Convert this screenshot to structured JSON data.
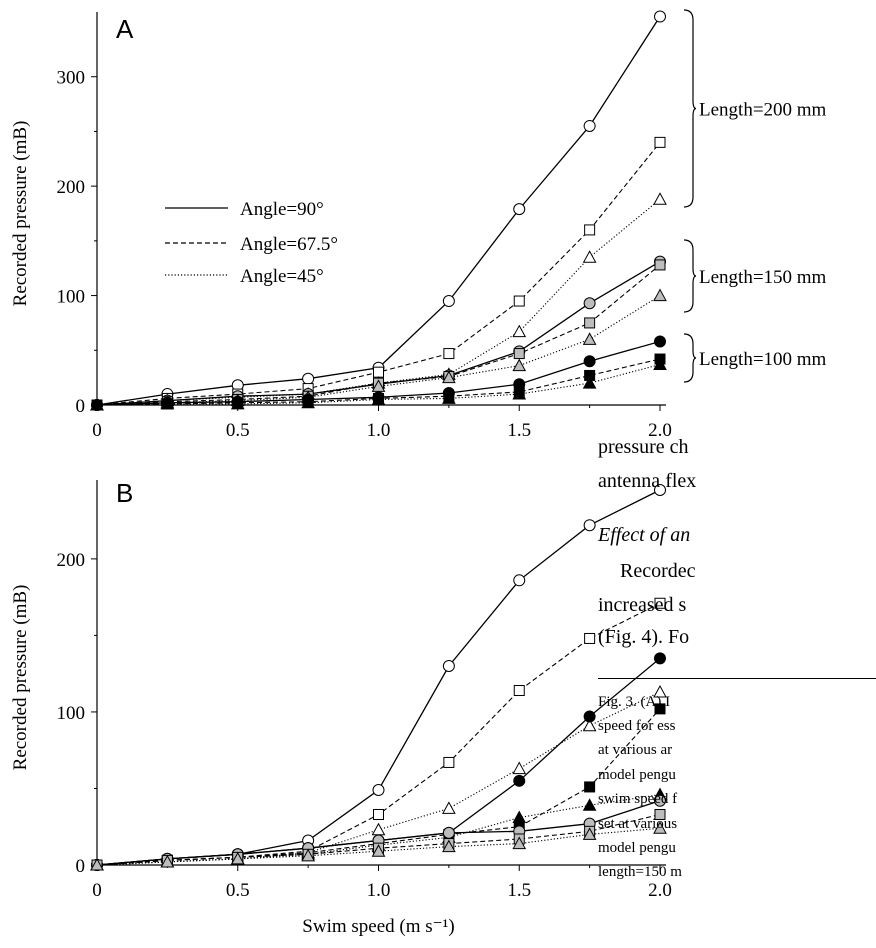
{
  "chart_data": [
    {
      "panel": "A",
      "type": "line",
      "ylabel": "Recorded pressure (mB)",
      "xlim": [
        0,
        2.0
      ],
      "ylim": [
        0,
        350
      ],
      "xticks": [
        "0",
        "0.5",
        "1.0",
        "1.5",
        "2.0"
      ],
      "yticks": [
        "0",
        "100",
        "200",
        "300"
      ],
      "legend": {
        "position": "upper-left",
        "entries": [
          "Angle=90°",
          "Angle=67.5°",
          "Angle=45°"
        ]
      },
      "group_labels": [
        "Length=200 mm",
        "Length=150 mm",
        "Length=100 mm"
      ],
      "x": [
        0,
        0.25,
        0.5,
        0.75,
        1.0,
        1.25,
        1.5,
        1.75,
        2.0
      ],
      "series": [
        {
          "length": 200,
          "angle": 90,
          "line": "solid",
          "marker": "circle",
          "fill": "white",
          "values": [
            0,
            10,
            18,
            24,
            34,
            95,
            179,
            255,
            355
          ]
        },
        {
          "length": 200,
          "angle": 67.5,
          "line": "dashed",
          "marker": "square",
          "fill": "white",
          "values": [
            0,
            6,
            10,
            15,
            30,
            47,
            95,
            160,
            240
          ]
        },
        {
          "length": 200,
          "angle": 45,
          "line": "dotted",
          "marker": "triangle",
          "fill": "white",
          "values": [
            0,
            4,
            7,
            10,
            20,
            28,
            67,
            135,
            188
          ]
        },
        {
          "length": 150,
          "angle": 90,
          "line": "solid",
          "marker": "circle",
          "fill": "gray",
          "values": [
            0,
            4,
            8,
            10,
            19,
            27,
            49,
            93,
            131
          ]
        },
        {
          "length": 150,
          "angle": 67.5,
          "line": "dashed",
          "marker": "square",
          "fill": "gray",
          "values": [
            0,
            3,
            5,
            8,
            20,
            26,
            47,
            75,
            128
          ]
        },
        {
          "length": 150,
          "angle": 45,
          "line": "dotted",
          "marker": "triangle",
          "fill": "gray",
          "values": [
            0,
            2,
            4,
            7,
            17,
            25,
            36,
            60,
            100
          ]
        },
        {
          "length": 100,
          "angle": 90,
          "line": "solid",
          "marker": "circle",
          "fill": "black",
          "values": [
            0,
            2,
            3,
            5,
            7,
            11,
            19,
            40,
            58
          ]
        },
        {
          "length": 100,
          "angle": 67.5,
          "line": "dashed",
          "marker": "square",
          "fill": "black",
          "values": [
            0,
            1,
            2,
            3,
            6,
            8,
            12,
            27,
            42
          ]
        },
        {
          "length": 100,
          "angle": 45,
          "line": "dotted",
          "marker": "triangle",
          "fill": "black",
          "values": [
            0,
            1,
            1,
            2,
            5,
            6,
            10,
            20,
            37
          ]
        }
      ]
    },
    {
      "panel": "B",
      "type": "line",
      "xlabel": "Swim speed (m s⁻¹)",
      "ylabel": "Recorded pressure (mB)",
      "xlim": [
        0,
        2.0
      ],
      "ylim": [
        0,
        245
      ],
      "xticks": [
        "0",
        "0.5",
        "1.0",
        "1.5",
        "2.0"
      ],
      "yticks": [
        "0",
        "100",
        "200"
      ],
      "x": [
        0,
        0.25,
        0.5,
        0.75,
        1.0,
        1.25,
        1.5,
        1.75,
        2.0
      ],
      "series": [
        {
          "length": 200,
          "angle": 90,
          "line": "solid",
          "marker": "circle",
          "fill": "white",
          "values": [
            0,
            4,
            7,
            16,
            49,
            130,
            186,
            222,
            245
          ]
        },
        {
          "length": 200,
          "angle": 67.5,
          "line": "dashed",
          "marker": "square",
          "fill": "white",
          "values": [
            0,
            3,
            5,
            9,
            33,
            67,
            114,
            148,
            171
          ]
        },
        {
          "length": 200,
          "angle": 45,
          "line": "dotted",
          "marker": "triangle",
          "fill": "white",
          "values": [
            0,
            2,
            4,
            8,
            23,
            37,
            63,
            91,
            113
          ]
        },
        {
          "length": 150,
          "angle": 90,
          "line": "solid",
          "marker": "circle",
          "fill": "black",
          "values": [
            0,
            4,
            7,
            11,
            16,
            21,
            55,
            97,
            135
          ]
        },
        {
          "length": 150,
          "angle": 67.5,
          "line": "dashed",
          "marker": "square",
          "fill": "black",
          "values": [
            0,
            3,
            5,
            8,
            14,
            20,
            25,
            51,
            102
          ]
        },
        {
          "length": 150,
          "angle": 45,
          "line": "dotted",
          "marker": "triangle",
          "fill": "black",
          "values": [
            0,
            2,
            4,
            7,
            13,
            18,
            31,
            39,
            46
          ]
        },
        {
          "length": 100,
          "angle": 90,
          "line": "solid",
          "marker": "circle",
          "fill": "gray",
          "values": [
            0,
            4,
            7,
            11,
            16,
            21,
            22,
            27,
            42
          ]
        },
        {
          "length": 100,
          "angle": 67.5,
          "line": "dashed",
          "marker": "square",
          "fill": "gray",
          "values": [
            0,
            3,
            5,
            7,
            11,
            14,
            17,
            22,
            33
          ]
        },
        {
          "length": 100,
          "angle": 45,
          "line": "dotted",
          "marker": "triangle",
          "fill": "gray",
          "values": [
            0,
            2,
            4,
            6,
            9,
            12,
            14,
            20,
            24
          ]
        }
      ]
    }
  ],
  "body_text": [
    "pressure  ch",
    "antenna flex",
    "Effect of an",
    "Recordec",
    "increased  s",
    "(Fig. 4). Fo"
  ],
  "caption_lines": [
    "Fig. 3.  (A)  I",
    "speed for ess",
    "at various ar",
    "model pengu",
    "swim speed f",
    "set at various",
    "model pengu",
    "length=150 m"
  ]
}
